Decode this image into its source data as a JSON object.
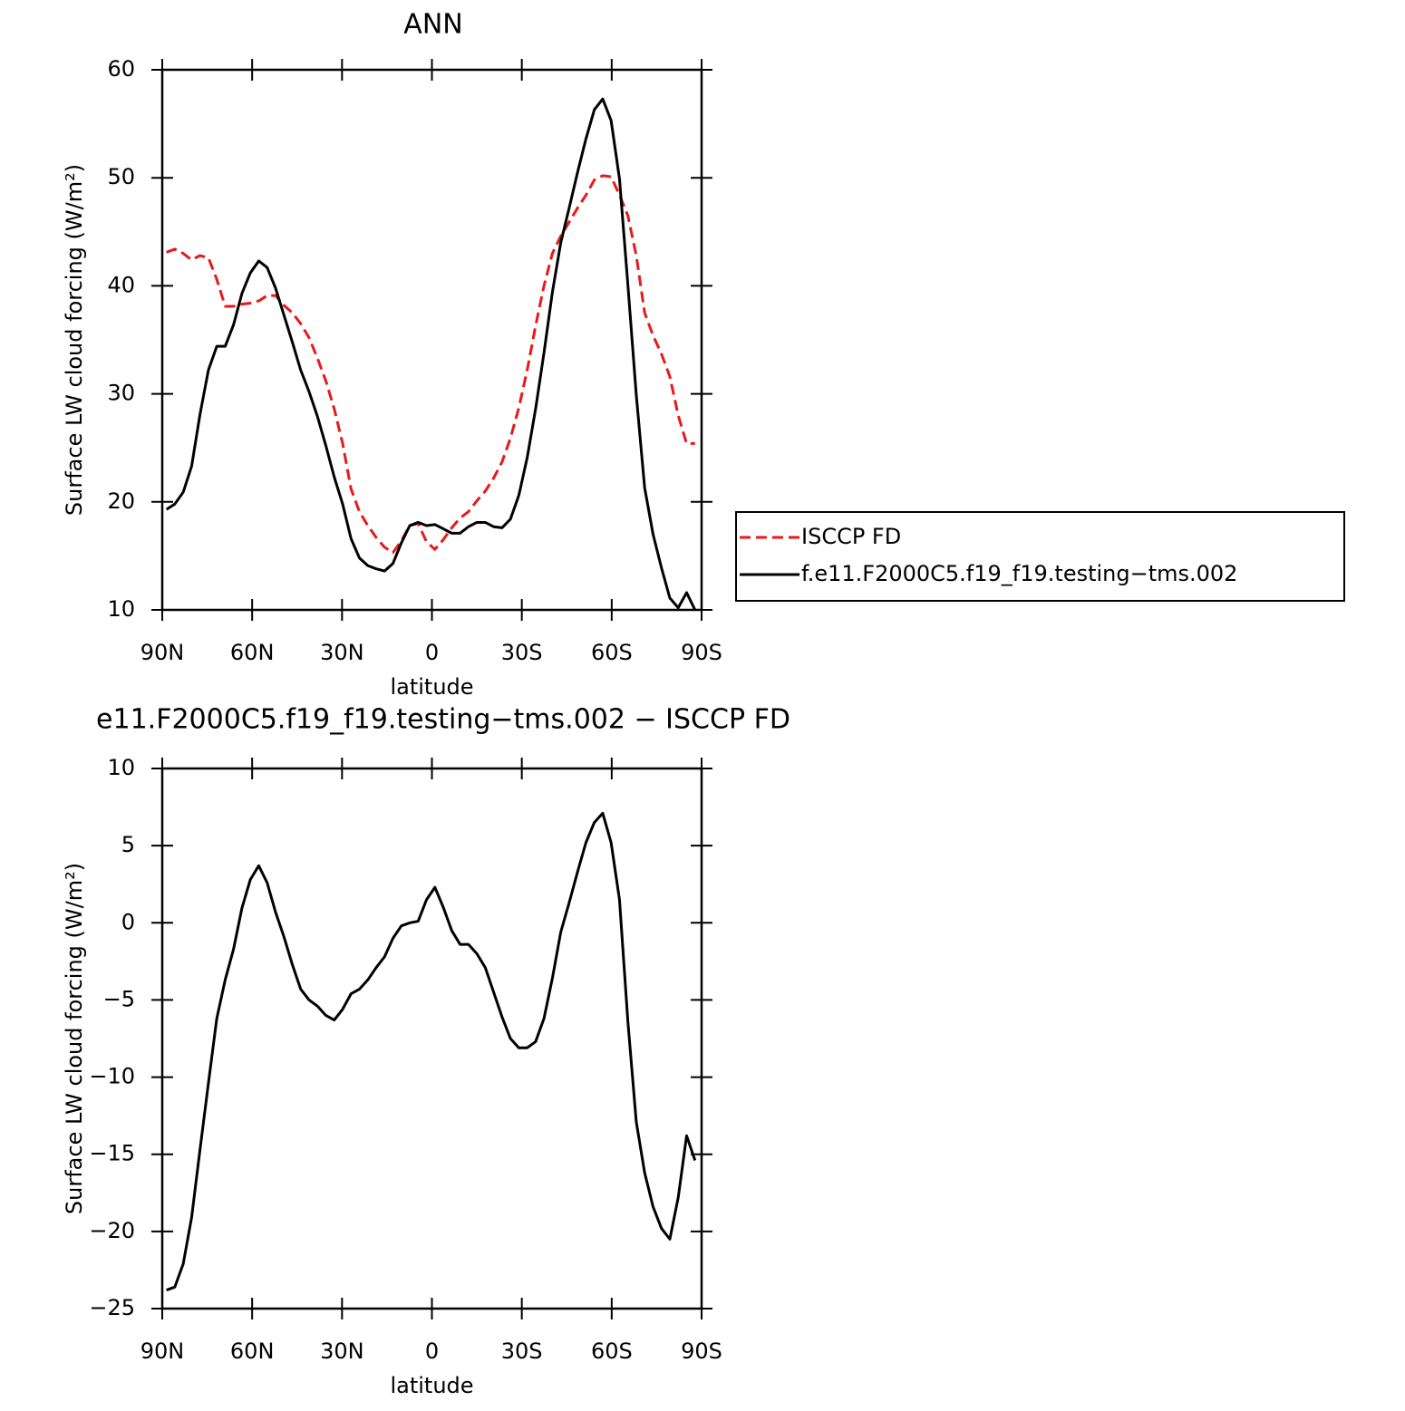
{
  "chart_data": [
    {
      "type": "line",
      "title": "ANN",
      "xlabel": "latitude",
      "ylabel": "Surface LW cloud forcing (W/m²)",
      "x": [
        88.6,
        85.8,
        83.0,
        80.2,
        77.4,
        74.6,
        71.8,
        69.0,
        66.2,
        63.4,
        60.6,
        57.8,
        55.0,
        52.2,
        49.4,
        46.6,
        43.8,
        41.0,
        38.2,
        35.4,
        32.6,
        29.8,
        27.0,
        24.2,
        21.4,
        18.6,
        15.8,
        13.0,
        10.2,
        7.4,
        4.6,
        1.8,
        -1.0,
        -3.8,
        -6.6,
        -9.4,
        -12.2,
        -15.0,
        -17.8,
        -20.6,
        -23.4,
        -26.2,
        -29.0,
        -31.8,
        -34.6,
        -37.4,
        -40.2,
        -43.0,
        -45.8,
        -48.6,
        -51.4,
        -54.2,
        -57.0,
        -59.8,
        -62.6,
        -65.4,
        -68.2,
        -71.0,
        -73.8,
        -76.6,
        -79.4,
        -82.2,
        -85.0,
        -87.8
      ],
      "series": [
        {
          "name": "ISCCP FD",
          "color": "#e8191c",
          "linestyle": "dashed",
          "values": [
            43.1,
            43.4,
            43.0,
            42.4,
            42.8,
            42.6,
            40.6,
            38.1,
            38.1,
            38.3,
            38.4,
            38.6,
            39.1,
            39.1,
            38.2,
            37.5,
            36.5,
            35.2,
            33.3,
            31.2,
            28.6,
            25.4,
            21.2,
            19.1,
            17.8,
            16.7,
            15.8,
            15.3,
            16.4,
            17.8,
            18.0,
            16.3,
            15.6,
            16.5,
            17.6,
            18.5,
            19.1,
            20.1,
            21.0,
            22.2,
            23.7,
            25.9,
            28.7,
            32.2,
            36.3,
            40.0,
            43.0,
            44.6,
            45.9,
            47.2,
            48.4,
            49.8,
            50.2,
            50.1,
            48.4,
            46.5,
            42.8,
            37.5,
            35.4,
            33.7,
            31.6,
            28.0,
            25.4,
            25.4
          ]
        },
        {
          "name": "f.e11.F2000C5.f19_f19.testing−tms.002",
          "color": "#000000",
          "linestyle": "solid",
          "values": [
            19.3,
            19.8,
            20.9,
            23.3,
            28.1,
            32.2,
            34.4,
            34.4,
            36.4,
            39.3,
            41.2,
            42.3,
            41.7,
            39.8,
            37.3,
            34.8,
            32.2,
            30.2,
            27.9,
            25.2,
            22.3,
            19.8,
            16.6,
            14.8,
            14.1,
            13.8,
            13.6,
            14.3,
            16.2,
            17.8,
            18.1,
            17.8,
            17.9,
            17.5,
            17.1,
            17.1,
            17.7,
            18.1,
            18.1,
            17.7,
            17.6,
            18.4,
            20.6,
            24.1,
            28.6,
            33.8,
            39.4,
            44.0,
            47.2,
            50.5,
            53.6,
            56.3,
            57.3,
            55.3,
            49.9,
            40.1,
            29.9,
            21.3,
            17.0,
            13.9,
            11.1,
            10.2,
            11.6,
            10.0
          ]
        }
      ],
      "xlim": [
        90,
        -90
      ],
      "xticks": [
        {
          "value": 90,
          "label": "90N"
        },
        {
          "value": 60,
          "label": "60N"
        },
        {
          "value": 30,
          "label": "30N"
        },
        0,
        {
          "value": -30,
          "label": "30S"
        },
        {
          "value": -60,
          "label": "60S"
        },
        {
          "value": -90,
          "label": "90S"
        }
      ],
      "ylim": [
        10,
        60
      ],
      "yticks": [
        10,
        20,
        30,
        40,
        50,
        60
      ],
      "legend": "outside-right"
    },
    {
      "type": "line",
      "title": "e11.F2000C5.f19_f19.testing−tms.002 − ISCCP FD",
      "xlabel": "latitude",
      "ylabel": "Surface LW cloud forcing (W/m²)",
      "x": [
        88.6,
        85.8,
        83.0,
        80.2,
        77.4,
        74.6,
        71.8,
        69.0,
        66.2,
        63.4,
        60.6,
        57.8,
        55.0,
        52.2,
        49.4,
        46.6,
        43.8,
        41.0,
        38.2,
        35.4,
        32.6,
        29.8,
        27.0,
        24.2,
        21.4,
        18.6,
        15.8,
        13.0,
        10.2,
        7.4,
        4.6,
        1.8,
        -1.0,
        -3.8,
        -6.6,
        -9.4,
        -12.2,
        -15.0,
        -17.8,
        -20.6,
        -23.4,
        -26.2,
        -29.0,
        -31.8,
        -34.6,
        -37.4,
        -40.2,
        -43.0,
        -45.8,
        -48.6,
        -51.4,
        -54.2,
        -57.0,
        -59.8,
        -62.6,
        -65.4,
        -68.2,
        -71.0,
        -73.8,
        -76.6,
        -79.4,
        -82.2,
        -85.0,
        -87.8
      ],
      "values": [
        -23.8,
        -23.6,
        -22.1,
        -19.1,
        -14.7,
        -10.4,
        -6.2,
        -3.7,
        -1.7,
        0.96,
        2.8,
        3.7,
        2.6,
        0.7,
        -0.9,
        -2.7,
        -4.3,
        -5.0,
        -5.4,
        -6.0,
        -6.3,
        -5.6,
        -4.6,
        -4.3,
        -3.7,
        -2.9,
        -2.2,
        -1.0,
        -0.2,
        0.0,
        0.1,
        1.5,
        2.3,
        1.0,
        -0.5,
        -1.4,
        -1.4,
        -2.0,
        -2.9,
        -4.5,
        -6.1,
        -7.5,
        -8.1,
        -8.1,
        -7.7,
        -6.2,
        -3.6,
        -0.6,
        1.3,
        3.3,
        5.2,
        6.5,
        7.1,
        5.2,
        1.5,
        -6.4,
        -12.9,
        -16.2,
        -18.4,
        -19.8,
        -20.5,
        -17.8,
        -13.8,
        -15.4
      ],
      "color": "#000000",
      "xlim": [
        90,
        -90
      ],
      "xticks": [
        {
          "value": 90,
          "label": "90N"
        },
        {
          "value": 60,
          "label": "60N"
        },
        {
          "value": 30,
          "label": "30N"
        },
        0,
        {
          "value": -30,
          "label": "30S"
        },
        {
          "value": -60,
          "label": "60S"
        },
        {
          "value": -90,
          "label": "90S"
        }
      ],
      "ylim": [
        -25,
        10
      ],
      "yticks": [
        {
          "value": -25,
          "label": "−25"
        },
        {
          "value": -20,
          "label": "−20"
        },
        {
          "value": -15,
          "label": "−15"
        },
        {
          "value": -10,
          "label": "−10"
        },
        {
          "value": -5,
          "label": "−5"
        },
        0,
        5,
        10
      ]
    }
  ]
}
